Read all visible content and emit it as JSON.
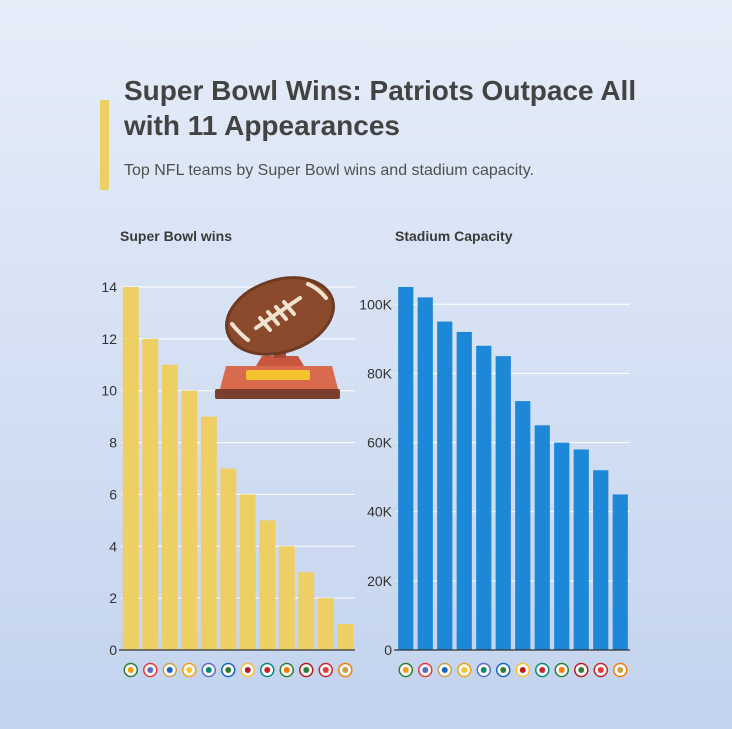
{
  "header": {
    "title": "Super Bowl Wins: Patriots Outpace All with 11 Appearances",
    "subtitle": "Top NFL teams by Super Bowl wins and stadium capacity."
  },
  "colors": {
    "accent": "#ecd064",
    "wins_bar": "#eecf64",
    "capacity_bar": "#1d88d8",
    "grid": "#ffffff",
    "text": "#434343"
  },
  "decoration": {
    "icon": "football-trophy-icon"
  },
  "chart_data": [
    {
      "type": "bar",
      "title": "Super Bowl wins",
      "xlabel": "",
      "ylabel": "",
      "ylim": [
        0,
        14
      ],
      "yticks": [
        0,
        2,
        4,
        6,
        8,
        10,
        12,
        14
      ],
      "values": [
        14,
        12,
        11,
        10,
        9,
        7,
        6,
        5,
        4,
        3,
        2,
        1
      ],
      "grid": true,
      "category_icons": [
        "team-logo-icon",
        "team-logo-icon",
        "team-logo-icon",
        "team-logo-icon",
        "team-logo-icon",
        "team-logo-icon",
        "team-logo-icon",
        "team-logo-icon",
        "team-logo-icon",
        "team-logo-icon",
        "team-logo-icon",
        "team-logo-icon"
      ]
    },
    {
      "type": "bar",
      "title": "Stadium Capacity",
      "xlabel": "",
      "ylabel": "",
      "ylim": [
        0,
        105000
      ],
      "yticks": [
        0,
        20000,
        40000,
        60000,
        80000,
        100000
      ],
      "ytick_labels": [
        "0",
        "20K",
        "40K",
        "60K",
        "80K",
        "100K"
      ],
      "values": [
        105000,
        102000,
        95000,
        92000,
        88000,
        85000,
        72000,
        65000,
        60000,
        58000,
        52000,
        45000
      ],
      "grid": true,
      "category_icons": [
        "team-logo-icon",
        "team-logo-icon",
        "team-logo-icon",
        "team-logo-icon",
        "team-logo-icon",
        "team-logo-icon",
        "team-logo-icon",
        "team-logo-icon",
        "team-logo-icon",
        "team-logo-icon",
        "team-logo-icon",
        "team-logo-icon"
      ]
    }
  ]
}
